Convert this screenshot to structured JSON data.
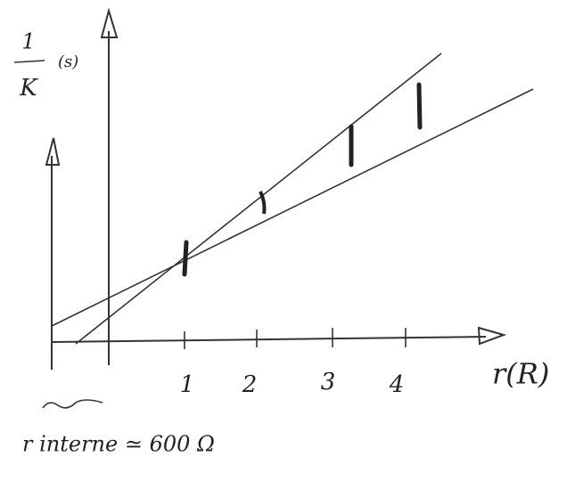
{
  "y_axis": {
    "label_top": "1",
    "label_bottom": "K",
    "unit": "(s)"
  },
  "x_axis": {
    "label": "r(R)",
    "ticks": [
      "1",
      "2",
      "3",
      "4"
    ]
  },
  "note": "r interne ≃ 600 Ω"
}
